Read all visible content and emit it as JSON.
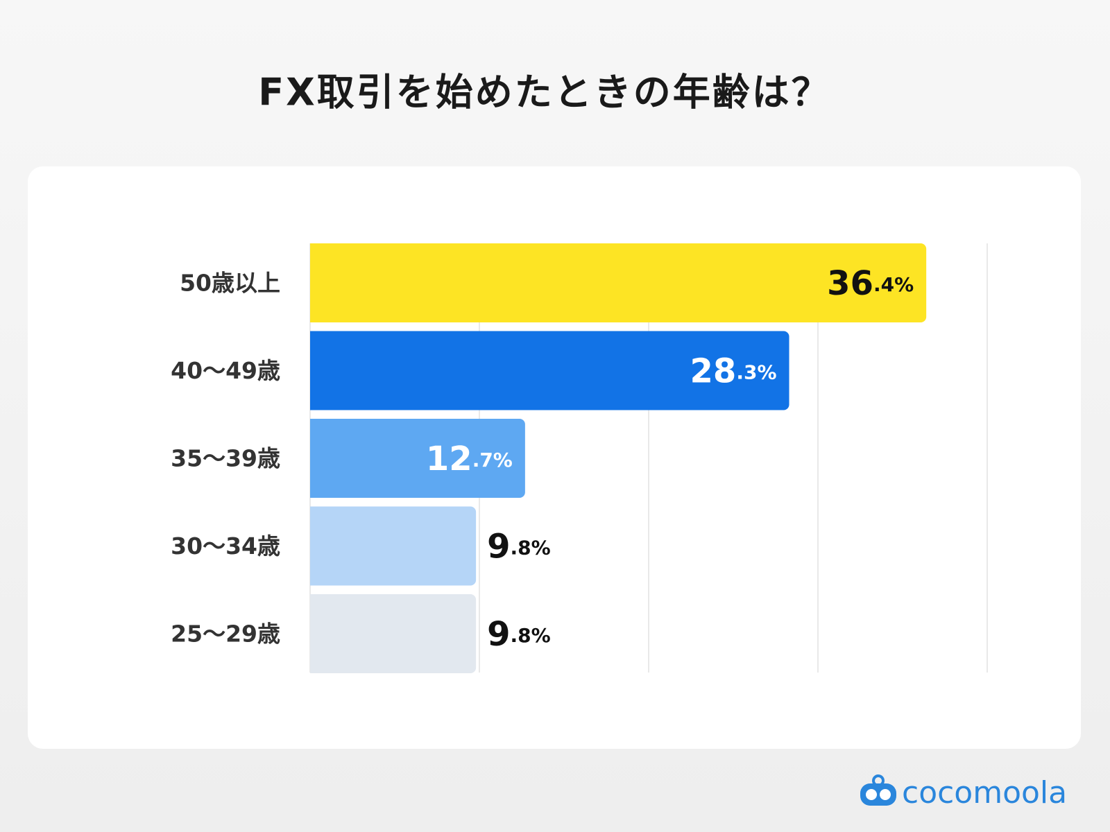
{
  "chart_data": {
    "type": "hbar",
    "title": "FX取引を始めたときの年齢は？",
    "categories": [
      "50歳以上",
      "40〜49歳",
      "35〜39歳",
      "30〜34歳",
      "25〜29歳"
    ],
    "values": [
      36.4,
      28.3,
      12.7,
      9.8,
      9.8
    ],
    "value_labels": [
      "36.4%",
      "28.3%",
      "12.7%",
      "9.8%",
      "9.8%"
    ],
    "colors": [
      "#fde424",
      "#1273e6",
      "#5ea8f2",
      "#b5d5f7",
      "#e2e8ef"
    ],
    "xlim": [
      0,
      40
    ],
    "xticks": [
      0,
      10,
      20,
      30,
      40
    ],
    "grid": true
  },
  "brand": "cocomoola"
}
